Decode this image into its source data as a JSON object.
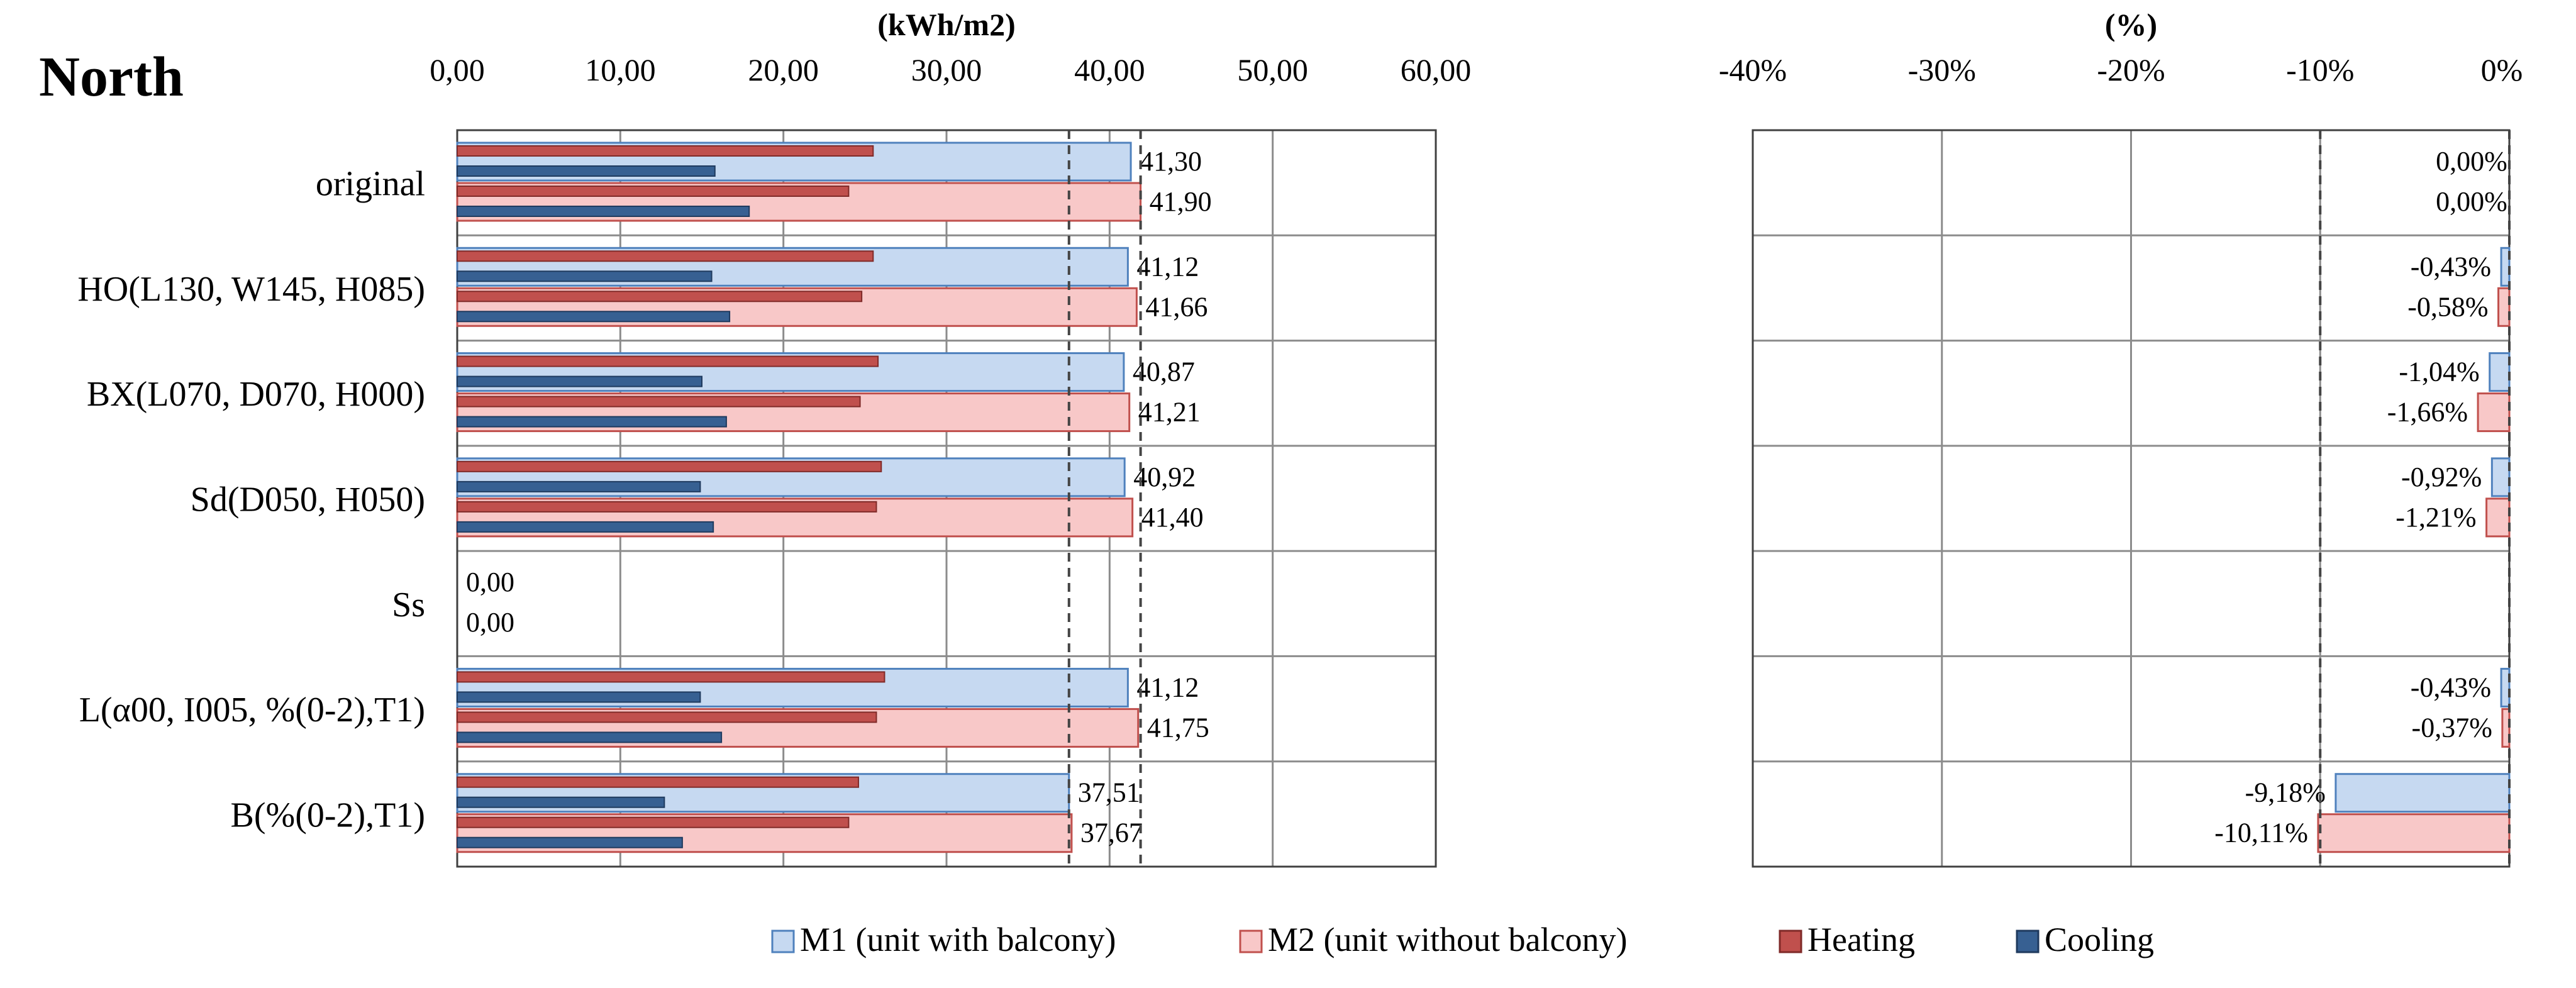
{
  "title": "North",
  "legend": [
    {
      "label": "M1 (unit with balcony)",
      "swatch": "m1"
    },
    {
      "label": "M2 (unit without balcony)",
      "swatch": "m2"
    },
    {
      "label": "Heating",
      "swatch": "heating"
    },
    {
      "label": "Cooling",
      "swatch": "cooling"
    }
  ],
  "colors": {
    "m1_fill": "#c6d9f1",
    "m1_stroke": "#4f81bd",
    "m2_fill": "#f8c8c8",
    "m2_stroke": "#c0504d",
    "heating": "#c0504d",
    "cooling": "#376092",
    "grid": "#8c8c8c",
    "axis": "#404040"
  },
  "chart_data": [
    {
      "type": "bar",
      "orientation": "horizontal",
      "unit_label": "(kWh/m2)",
      "xlim": [
        0,
        60
      ],
      "ticks": [
        0,
        10,
        20,
        30,
        40,
        50,
        60
      ],
      "tick_labels": [
        "0,00",
        "10,00",
        "20,00",
        "30,00",
        "40,00",
        "50,00",
        "60,00"
      ],
      "categories": [
        "original",
        "HO(L130, W145, H085)",
        "BX(L070, D070, H000)",
        "Sd(D050, H050)",
        "Ss",
        "L(α00, I005, %(0-2),T1)",
        "B(%(0-2),T1)"
      ],
      "series": [
        {
          "name": "M1 (unit with balcony)",
          "values": [
            41.3,
            41.12,
            40.87,
            40.92,
            0.0,
            41.12,
            37.51
          ],
          "labels": [
            "41,30",
            "41,12",
            "40,87",
            "40,92",
            "0,00",
            "41,12",
            "37,51"
          ]
        },
        {
          "name": "M2 (unit without balcony)",
          "values": [
            41.9,
            41.66,
            41.21,
            41.4,
            0.0,
            41.75,
            37.67
          ],
          "labels": [
            "41,90",
            "41,66",
            "41,21",
            "41,40",
            "0,00",
            "41,75",
            "37,67"
          ]
        },
        {
          "name": "Heating M1",
          "values": [
            25.5,
            25.5,
            25.8,
            26.0,
            0,
            26.2,
            24.6
          ]
        },
        {
          "name": "Cooling M1",
          "values": [
            15.8,
            15.6,
            15.0,
            14.9,
            0,
            14.9,
            12.7
          ]
        },
        {
          "name": "Heating M2",
          "values": [
            24.0,
            24.8,
            24.7,
            25.7,
            0,
            25.7,
            24.0
          ]
        },
        {
          "name": "Cooling M2",
          "values": [
            17.9,
            16.7,
            16.5,
            15.7,
            0,
            16.2,
            13.8
          ]
        }
      ],
      "reference_lines": [
        37.51,
        41.9
      ]
    },
    {
      "type": "bar",
      "orientation": "horizontal",
      "unit_label": "(%)",
      "xlim": [
        -40,
        0
      ],
      "ticks": [
        -40,
        -30,
        -20,
        -10,
        0
      ],
      "tick_labels": [
        "-40%",
        "-30%",
        "-20%",
        "-10%",
        "0%"
      ],
      "categories": [
        "original",
        "HO(L130, W145, H085)",
        "BX(L070, D070, H000)",
        "Sd(D050, H050)",
        "Ss",
        "L(α00, I005, %(0-2),T1)",
        "B(%(0-2),T1)"
      ],
      "series": [
        {
          "name": "M1 (unit with balcony)",
          "values": [
            0.0,
            -0.43,
            -1.04,
            -0.92,
            null,
            -0.43,
            -9.18
          ],
          "labels": [
            "0,00%",
            "-0,43%",
            "-1,04%",
            "-0,92%",
            "",
            "-0,43%",
            "-9,18%"
          ]
        },
        {
          "name": "M2 (unit without balcony)",
          "values": [
            0.0,
            -0.58,
            -1.66,
            -1.21,
            null,
            -0.37,
            -10.11
          ],
          "labels": [
            "0,00%",
            "-0,58%",
            "-1,66%",
            "-1,21%",
            "",
            "-0,37%",
            "-10,11%"
          ]
        }
      ],
      "reference_lines": [
        -10,
        0
      ]
    }
  ]
}
